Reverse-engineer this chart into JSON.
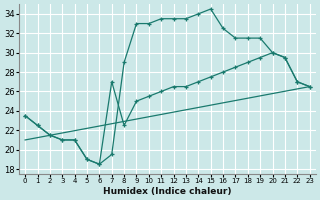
{
  "xlabel": "Humidex (Indice chaleur)",
  "bg_color": "#cce8e8",
  "grid_color": "#ffffff",
  "line_color": "#1a7a6e",
  "xlim": [
    -0.5,
    23.5
  ],
  "ylim": [
    17.5,
    35.0
  ],
  "xticks": [
    0,
    1,
    2,
    3,
    4,
    5,
    6,
    7,
    8,
    9,
    10,
    11,
    12,
    13,
    14,
    15,
    16,
    17,
    18,
    19,
    20,
    21,
    22,
    23
  ],
  "yticks": [
    18,
    20,
    22,
    24,
    26,
    28,
    30,
    32,
    34
  ],
  "line1_x": [
    0,
    1,
    2,
    3,
    4,
    5,
    6,
    7,
    8,
    9,
    10,
    11,
    12,
    13,
    14,
    15,
    16,
    17,
    18,
    19,
    20,
    21,
    22,
    23
  ],
  "line1_y": [
    23.5,
    22.5,
    21.5,
    21.0,
    21.0,
    19.0,
    18.5,
    19.5,
    29.0,
    33.0,
    33.0,
    33.5,
    33.5,
    33.5,
    34.0,
    34.5,
    32.5,
    31.5,
    31.5,
    31.5,
    30.0,
    29.5,
    27.0,
    26.5
  ],
  "line2_x": [
    0,
    1,
    2,
    3,
    4,
    5,
    6,
    7,
    8,
    9,
    10,
    11,
    12,
    13,
    14,
    15,
    16,
    17,
    18,
    19,
    20,
    21,
    22,
    23
  ],
  "line2_y": [
    23.5,
    22.5,
    21.5,
    21.0,
    21.0,
    19.0,
    18.5,
    27.0,
    22.5,
    25.0,
    25.5,
    26.0,
    26.5,
    26.5,
    27.0,
    27.5,
    28.0,
    28.5,
    29.0,
    29.5,
    30.0,
    29.5,
    27.0,
    26.5
  ],
  "line3_x": [
    0,
    23
  ],
  "line3_y": [
    21.0,
    26.5
  ]
}
